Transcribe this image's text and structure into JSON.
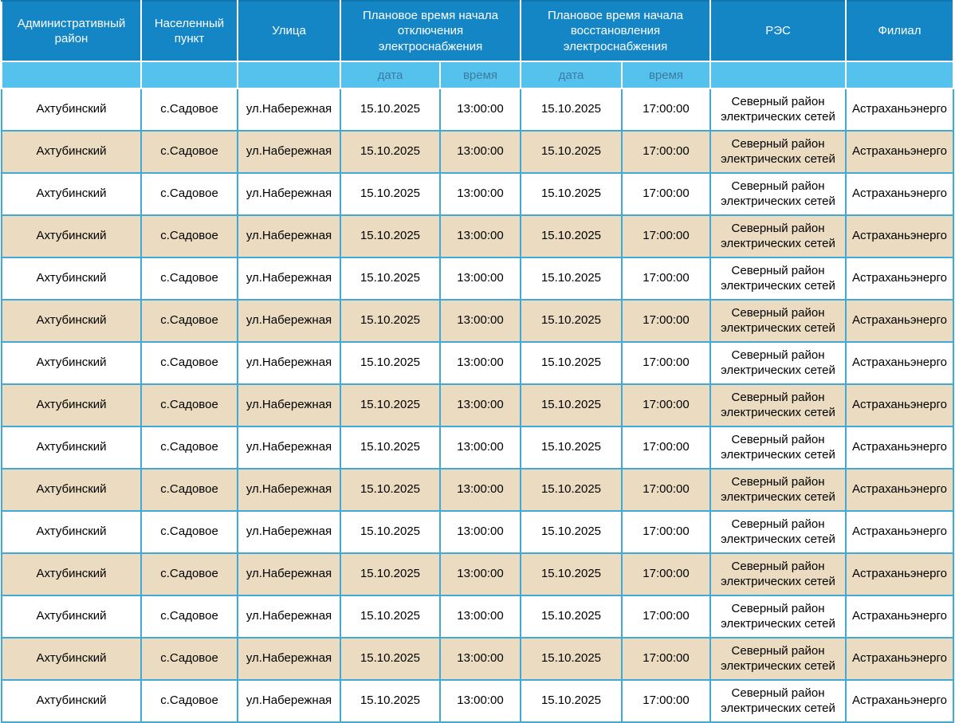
{
  "table": {
    "headers": [
      {
        "label": "Административный район"
      },
      {
        "label": "Населенный пункт"
      },
      {
        "label": "Улица"
      },
      {
        "label": "Плановое время начала отключения электроснабжения"
      },
      {
        "label": "Плановое время начала восстановления электроснабжения"
      },
      {
        "label": "РЭС"
      },
      {
        "label": "Филиал"
      }
    ],
    "subheaders": [
      "",
      "",
      "",
      "дата",
      "время",
      "дата",
      "время",
      "",
      ""
    ],
    "rows": [
      [
        "Ахтубинский",
        "с.Садовое",
        "ул.Набережная",
        "15.10.2025",
        "13:00:00",
        "15.10.2025",
        "17:00:00",
        "Северный район электрических сетей",
        "Астраханьэнерго"
      ],
      [
        "Ахтубинский",
        "с.Садовое",
        "ул.Набережная",
        "15.10.2025",
        "13:00:00",
        "15.10.2025",
        "17:00:00",
        "Северный район электрических сетей",
        "Астраханьэнерго"
      ],
      [
        "Ахтубинский",
        "с.Садовое",
        "ул.Набережная",
        "15.10.2025",
        "13:00:00",
        "15.10.2025",
        "17:00:00",
        "Северный район электрических сетей",
        "Астраханьэнерго"
      ],
      [
        "Ахтубинский",
        "с.Садовое",
        "ул.Набережная",
        "15.10.2025",
        "13:00:00",
        "15.10.2025",
        "17:00:00",
        "Северный район электрических сетей",
        "Астраханьэнерго"
      ],
      [
        "Ахтубинский",
        "с.Садовое",
        "ул.Набережная",
        "15.10.2025",
        "13:00:00",
        "15.10.2025",
        "17:00:00",
        "Северный район электрических сетей",
        "Астраханьэнерго"
      ],
      [
        "Ахтубинский",
        "с.Садовое",
        "ул.Набережная",
        "15.10.2025",
        "13:00:00",
        "15.10.2025",
        "17:00:00",
        "Северный район электрических сетей",
        "Астраханьэнерго"
      ],
      [
        "Ахтубинский",
        "с.Садовое",
        "ул.Набережная",
        "15.10.2025",
        "13:00:00",
        "15.10.2025",
        "17:00:00",
        "Северный район электрических сетей",
        "Астраханьэнерго"
      ],
      [
        "Ахтубинский",
        "с.Садовое",
        "ул.Набережная",
        "15.10.2025",
        "13:00:00",
        "15.10.2025",
        "17:00:00",
        "Северный район электрических сетей",
        "Астраханьэнерго"
      ],
      [
        "Ахтубинский",
        "с.Садовое",
        "ул.Набережная",
        "15.10.2025",
        "13:00:00",
        "15.10.2025",
        "17:00:00",
        "Северный район электрических сетей",
        "Астраханьэнерго"
      ],
      [
        "Ахтубинский",
        "с.Садовое",
        "ул.Набережная",
        "15.10.2025",
        "13:00:00",
        "15.10.2025",
        "17:00:00",
        "Северный район электрических сетей",
        "Астраханьэнерго"
      ],
      [
        "Ахтубинский",
        "с.Садовое",
        "ул.Набережная",
        "15.10.2025",
        "13:00:00",
        "15.10.2025",
        "17:00:00",
        "Северный район электрических сетей",
        "Астраханьэнерго"
      ],
      [
        "Ахтубинский",
        "с.Садовое",
        "ул.Набережная",
        "15.10.2025",
        "13:00:00",
        "15.10.2025",
        "17:00:00",
        "Северный район электрических сетей",
        "Астраханьэнерго"
      ],
      [
        "Ахтубинский",
        "с.Садовое",
        "ул.Набережная",
        "15.10.2025",
        "13:00:00",
        "15.10.2025",
        "17:00:00",
        "Северный район электрических сетей",
        "Астраханьэнерго"
      ],
      [
        "Ахтубинский",
        "с.Садовое",
        "ул.Набережная",
        "15.10.2025",
        "13:00:00",
        "15.10.2025",
        "17:00:00",
        "Северный район электрических сетей",
        "Астраханьэнерго"
      ],
      [
        "Ахтубинский",
        "с.Садовое",
        "ул.Набережная",
        "15.10.2025",
        "13:00:00",
        "15.10.2025",
        "17:00:00",
        "Северный район электрических сетей",
        "Астраханьэнерго"
      ]
    ]
  },
  "colors": {
    "header_bg": "#1486c6",
    "header_text": "#ffffff",
    "subheader_bg": "#55c2ee",
    "subheader_text": "#3e7aa1",
    "row_bg": "#ffffff",
    "row_alt_bg": "#ebdcc1",
    "grid_border": "#41a9d6",
    "header_border": "#ffffff"
  }
}
